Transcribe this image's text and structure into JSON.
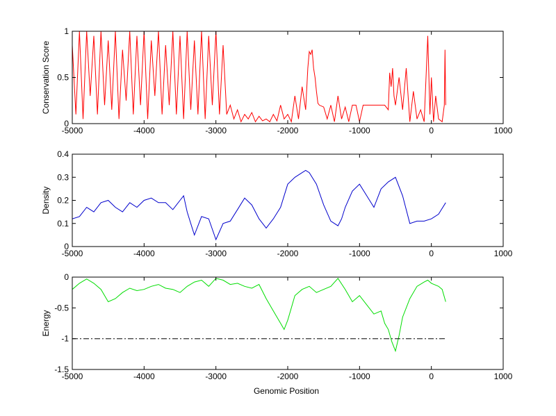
{
  "chart_data": [
    {
      "type": "line",
      "ylabel": "Conservation Score",
      "xlim": [
        -5000,
        1000
      ],
      "ylim": [
        0,
        1
      ],
      "xticks": [
        "-5000",
        "-4000",
        "-3000",
        "-2000",
        "-1000",
        "0",
        "1000"
      ],
      "yticks": [
        "0",
        "0.5",
        "1"
      ],
      "grid": false,
      "series": [
        {
          "color": "#ff0000",
          "x": [
            -5000,
            -4950,
            -4900,
            -4850,
            -4800,
            -4750,
            -4700,
            -4650,
            -4600,
            -4550,
            -4500,
            -4450,
            -4400,
            -4350,
            -4300,
            -4250,
            -4200,
            -4150,
            -4100,
            -4050,
            -4000,
            -3950,
            -3900,
            -3850,
            -3800,
            -3750,
            -3700,
            -3650,
            -3600,
            -3550,
            -3500,
            -3450,
            -3400,
            -3350,
            -3300,
            -3250,
            -3200,
            -3150,
            -3100,
            -3050,
            -3000,
            -2950,
            -2900,
            -2850,
            -2800,
            -2750,
            -2700,
            -2650,
            -2600,
            -2550,
            -2500,
            -2450,
            -2400,
            -2350,
            -2300,
            -2250,
            -2200,
            -2150,
            -2100,
            -2050,
            -2000,
            -1950,
            -1900,
            -1850,
            -1800,
            -1750,
            -1720,
            -1700,
            -1680,
            -1660,
            -1640,
            -1620,
            -1600,
            -1580,
            -1560,
            -1500,
            -1450,
            -1400,
            -1350,
            -1300,
            -1250,
            -1200,
            -1150,
            -1100,
            -1050,
            -1000,
            -950,
            -900,
            -850,
            -800,
            -750,
            -700,
            -650,
            -600,
            -580,
            -560,
            -540,
            -520,
            -500,
            -450,
            -400,
            -350,
            -300,
            -250,
            -200,
            -150,
            -100,
            -50,
            -20,
            0,
            30,
            60,
            100,
            150,
            180,
            190,
            200
          ],
          "y": [
            0.85,
            0.1,
            1,
            0.05,
            1,
            0.3,
            0.95,
            0.1,
            1,
            0.2,
            0.9,
            0.15,
            1,
            0.05,
            0.8,
            0.25,
            1,
            0.1,
            0.95,
            0.2,
            1,
            0.05,
            0.9,
            0.3,
            1,
            0.1,
            0.85,
            0.2,
            1,
            0.1,
            0.95,
            0.05,
            1,
            0.15,
            0.9,
            0.1,
            1,
            0.05,
            0.95,
            0.2,
            1,
            0.1,
            0.85,
            0.1,
            0.2,
            0.05,
            0.15,
            0.02,
            0.1,
            0.05,
            0.12,
            0.02,
            0.08,
            0.03,
            0.05,
            0.02,
            0.1,
            0.03,
            0.2,
            0.05,
            0.1,
            0.02,
            0.3,
            0.05,
            0.4,
            0.15,
            0.6,
            0.78,
            0.75,
            0.8,
            0.6,
            0.5,
            0.35,
            0.22,
            0.2,
            0.18,
            0.05,
            0.2,
            0.02,
            0.3,
            0.05,
            0.18,
            0.02,
            0.2,
            0.2,
            0.02,
            0.2,
            0.2,
            0.2,
            0.2,
            0.2,
            0.2,
            0.2,
            0.15,
            0.55,
            0.4,
            0.6,
            0.3,
            0.2,
            0.5,
            0.15,
            0.6,
            0.02,
            0.35,
            0.05,
            0.15,
            0.02,
            0.95,
            0.1,
            0.5,
            0.02,
            0.3,
            0.05,
            0.02,
            0.2,
            0.8,
            0.2
          ]
        }
      ]
    },
    {
      "type": "line",
      "ylabel": "Density",
      "xlim": [
        -5000,
        1000
      ],
      "ylim": [
        0,
        0.4
      ],
      "xticks": [
        "-5000",
        "-4000",
        "-3000",
        "-2000",
        "-1000",
        "0",
        "1000"
      ],
      "yticks": [
        "0",
        "0.1",
        "0.2",
        "0.3",
        "0.4"
      ],
      "grid": false,
      "series": [
        {
          "color": "#0000cc",
          "x": [
            -5000,
            -4900,
            -4800,
            -4700,
            -4600,
            -4500,
            -4400,
            -4300,
            -4200,
            -4100,
            -4000,
            -3900,
            -3800,
            -3700,
            -3600,
            -3500,
            -3450,
            -3400,
            -3350,
            -3300,
            -3200,
            -3100,
            -3000,
            -2900,
            -2800,
            -2700,
            -2600,
            -2500,
            -2400,
            -2300,
            -2200,
            -2100,
            -2000,
            -1900,
            -1800,
            -1750,
            -1700,
            -1600,
            -1500,
            -1400,
            -1300,
            -1250,
            -1200,
            -1100,
            -1000,
            -900,
            -800,
            -700,
            -600,
            -500,
            -400,
            -300,
            -200,
            -100,
            0,
            100,
            200
          ],
          "y": [
            0.12,
            0.13,
            0.17,
            0.15,
            0.19,
            0.2,
            0.17,
            0.15,
            0.19,
            0.17,
            0.2,
            0.21,
            0.19,
            0.19,
            0.16,
            0.2,
            0.22,
            0.15,
            0.1,
            0.05,
            0.13,
            0.12,
            0.03,
            0.1,
            0.11,
            0.16,
            0.21,
            0.18,
            0.12,
            0.08,
            0.12,
            0.17,
            0.27,
            0.3,
            0.32,
            0.33,
            0.32,
            0.27,
            0.18,
            0.11,
            0.09,
            0.12,
            0.17,
            0.24,
            0.27,
            0.22,
            0.17,
            0.25,
            0.28,
            0.3,
            0.22,
            0.1,
            0.11,
            0.11,
            0.12,
            0.14,
            0.19
          ]
        }
      ]
    },
    {
      "type": "line",
      "ylabel": "Energy",
      "xlabel": "Genomic Position",
      "xlim": [
        -5000,
        1000
      ],
      "ylim": [
        -1.5,
        0
      ],
      "xticks": [
        "-5000",
        "-4000",
        "-3000",
        "-2000",
        "-1000",
        "0",
        "1000"
      ],
      "yticks": [
        "-1.5",
        "-1",
        "-0.5",
        "0"
      ],
      "grid": false,
      "series": [
        {
          "color": "#00dd00",
          "x": [
            -5000,
            -4900,
            -4800,
            -4700,
            -4600,
            -4500,
            -4400,
            -4300,
            -4200,
            -4100,
            -4000,
            -3900,
            -3800,
            -3700,
            -3600,
            -3500,
            -3400,
            -3300,
            -3200,
            -3100,
            -3000,
            -2900,
            -2800,
            -2700,
            -2600,
            -2500,
            -2400,
            -2300,
            -2200,
            -2100,
            -2050,
            -2000,
            -1950,
            -1900,
            -1800,
            -1700,
            -1600,
            -1500,
            -1400,
            -1300,
            -1200,
            -1100,
            -1000,
            -900,
            -800,
            -700,
            -650,
            -600,
            -550,
            -500,
            -450,
            -400,
            -300,
            -200,
            -100,
            -50,
            0,
            100,
            150,
            200
          ],
          "y": [
            -0.2,
            -0.1,
            -0.03,
            -0.1,
            -0.2,
            -0.4,
            -0.35,
            -0.25,
            -0.18,
            -0.22,
            -0.2,
            -0.15,
            -0.12,
            -0.18,
            -0.2,
            -0.25,
            -0.15,
            -0.08,
            -0.05,
            -0.15,
            -0.02,
            -0.05,
            -0.12,
            -0.1,
            -0.15,
            -0.18,
            -0.12,
            -0.35,
            -0.55,
            -0.75,
            -0.85,
            -0.7,
            -0.5,
            -0.3,
            -0.2,
            -0.15,
            -0.25,
            -0.2,
            -0.15,
            -0.02,
            -0.2,
            -0.4,
            -0.3,
            -0.45,
            -0.6,
            -0.55,
            -0.75,
            -0.85,
            -1.05,
            -1.2,
            -0.95,
            -0.65,
            -0.35,
            -0.15,
            -0.08,
            -0.05,
            -0.1,
            -0.15,
            -0.2,
            -0.4
          ]
        },
        {
          "color": "#000000",
          "dash": "dashdot",
          "x": [
            -5000,
            200
          ],
          "y": [
            -1,
            -1
          ]
        }
      ]
    }
  ]
}
